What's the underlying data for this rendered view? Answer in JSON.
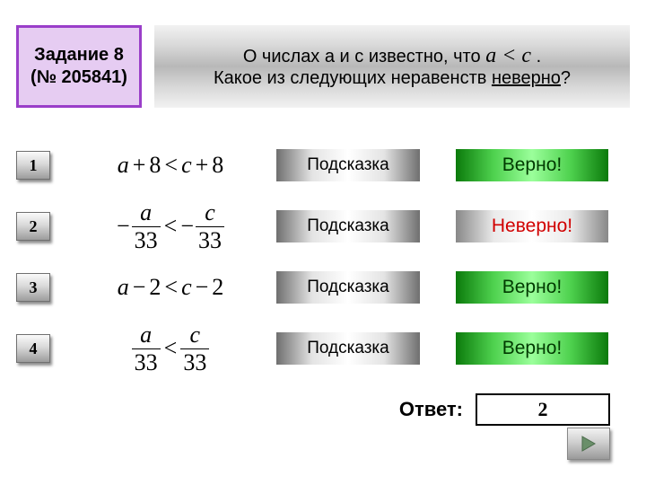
{
  "header": {
    "badge_line1": "Задание 8",
    "badge_line2": "(№ 205841)",
    "q_prefix": "О числах а и с известно, что ",
    "q_math": "a < c",
    "q_suffix": " .",
    "q_line2_a": "Какое из следующих неравенств ",
    "q_line2_u": "неверно",
    "q_line2_b": "?"
  },
  "rows": [
    {
      "num": "1",
      "formula_html": "<span>a</span><span class=\"op\">+</span><span style=\"font-style:normal\">8</span><span class=\"op\">&lt;</span><span>c</span><span class=\"op\">+</span><span style=\"font-style:normal\">8</span>",
      "hint": "Подсказка",
      "status_text": "Верно!",
      "status_kind": "correct"
    },
    {
      "num": "2",
      "formula_html": "<span class=\"minus-lead\">&minus;</span><span class=\"frac\"><span class=\"n\">a</span><span class=\"d\">33</span></span><span class=\"op\">&lt;</span><span class=\"minus-lead\">&minus;</span><span class=\"frac\"><span class=\"n\">c</span><span class=\"d\">33</span></span>",
      "hint": "Подсказка",
      "status_text": "Неверно!",
      "status_kind": "wrong"
    },
    {
      "num": "3",
      "formula_html": "<span>a</span><span class=\"op\">&minus;</span><span style=\"font-style:normal\">2</span><span class=\"op\">&lt;</span><span>c</span><span class=\"op\">&minus;</span><span style=\"font-style:normal\">2</span>",
      "hint": "Подсказка",
      "status_text": "Верно!",
      "status_kind": "correct"
    },
    {
      "num": "4",
      "formula_html": "<span class=\"frac\"><span class=\"n\">a</span><span class=\"d\">33</span></span><span class=\"op\">&lt;</span><span class=\"frac\"><span class=\"n\">c</span><span class=\"d\">33</span></span>",
      "hint": "Подсказка",
      "status_text": "Верно!",
      "status_kind": "correct"
    }
  ],
  "answer": {
    "label": "Ответ:",
    "value": "2"
  },
  "colors": {
    "badge_border": "#9a3ec9",
    "badge_bg": "#e6ccf2",
    "correct_text": "#003a00",
    "wrong_text": "#d10000"
  }
}
